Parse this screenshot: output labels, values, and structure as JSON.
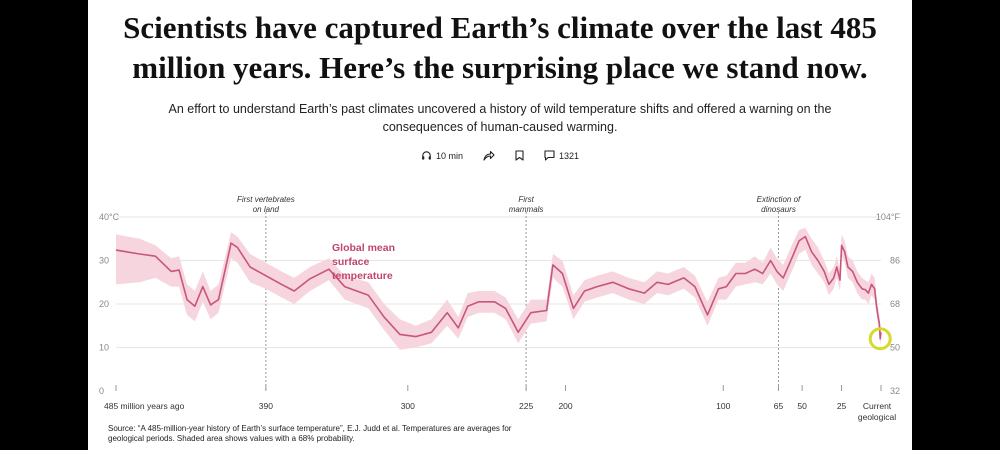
{
  "article": {
    "headline": "Scientists have captured Earth’s climate over the last 485 million years. Here’s the surprising place we stand now.",
    "dek": "An effort to understand Earth’s past climates uncovered a history of wild temperature shifts and offered a warning on the consequences of human-caused warming.",
    "toolbar": {
      "listen_label": "10 min",
      "share_icon": "share-icon",
      "bookmark_icon": "bookmark-icon",
      "comments_count": "1321"
    },
    "source": "Source: “A 485-million-year history of Earth’s surface temperature”, E.J. Judd et al. Temperatures are averages for geological periods. Shaded area shows values with a 68% probability."
  },
  "colors": {
    "line": "#c8557a",
    "band": "#f6d5df",
    "label": "#c0466c",
    "highlight": "#d6d92e"
  },
  "chart_data": {
    "type": "area",
    "series_label_lines": [
      "Global mean",
      "surface",
      "temperature"
    ],
    "xlim": [
      485,
      0
    ],
    "ylim": [
      0,
      40
    ],
    "x_ticks": [
      {
        "v": 485,
        "label": "485 million years ago"
      },
      {
        "v": 390,
        "label": "390"
      },
      {
        "v": 300,
        "label": "300"
      },
      {
        "v": 225,
        "label": "225"
      },
      {
        "v": 200,
        "label": "200"
      },
      {
        "v": 100,
        "label": "100"
      },
      {
        "v": 65,
        "label": "65"
      },
      {
        "v": 50,
        "label": "50"
      },
      {
        "v": 25,
        "label": "25"
      },
      {
        "v": 0,
        "label": "Current geological stage"
      }
    ],
    "y_ticks_left": [
      {
        "v": 0,
        "label": "0"
      },
      {
        "v": 10,
        "label": "10"
      },
      {
        "v": 20,
        "label": "20"
      },
      {
        "v": 30,
        "label": "30"
      },
      {
        "v": 40,
        "label": "40°C"
      }
    ],
    "y_ticks_right": [
      {
        "v": 0,
        "label": "32"
      },
      {
        "v": 10,
        "label": "50"
      },
      {
        "v": 20,
        "label": "68"
      },
      {
        "v": 30,
        "label": "86"
      },
      {
        "v": 40,
        "label": "104°F"
      }
    ],
    "annotations": [
      {
        "x": 390,
        "lines": [
          "First vertebrates",
          "on land"
        ]
      },
      {
        "x": 225,
        "lines": [
          "First",
          "mammals"
        ]
      },
      {
        "x": 65,
        "lines": [
          "Extinction of",
          "dinosaurs"
        ]
      }
    ],
    "grid": true,
    "points": [
      {
        "x": 485,
        "y": 32.4,
        "lo": 24.5,
        "hi": 36.0
      },
      {
        "x": 470,
        "y": 31.5,
        "lo": 25.0,
        "hi": 35.0
      },
      {
        "x": 460,
        "y": 31.0,
        "lo": 26.0,
        "hi": 33.5
      },
      {
        "x": 450,
        "y": 27.5,
        "lo": 24.0,
        "hi": 30.5
      },
      {
        "x": 445,
        "y": 27.8,
        "lo": 24.0,
        "hi": 31.0
      },
      {
        "x": 440,
        "y": 21.0,
        "lo": 17.5,
        "hi": 24.5
      },
      {
        "x": 435,
        "y": 19.5,
        "lo": 16.0,
        "hi": 23.0
      },
      {
        "x": 430,
        "y": 24.0,
        "lo": 20.5,
        "hi": 27.5
      },
      {
        "x": 425,
        "y": 19.8,
        "lo": 16.5,
        "hi": 23.0
      },
      {
        "x": 420,
        "y": 21.0,
        "lo": 18.0,
        "hi": 24.5
      },
      {
        "x": 412,
        "y": 34.0,
        "lo": 30.5,
        "hi": 36.5
      },
      {
        "x": 408,
        "y": 33.0,
        "lo": 29.5,
        "hi": 35.5
      },
      {
        "x": 400,
        "y": 28.5,
        "lo": 25.0,
        "hi": 31.5
      },
      {
        "x": 390,
        "y": 26.5,
        "lo": 23.5,
        "hi": 29.5
      },
      {
        "x": 380,
        "y": 24.5,
        "lo": 21.5,
        "hi": 27.5
      },
      {
        "x": 372,
        "y": 23.0,
        "lo": 20.0,
        "hi": 26.0
      },
      {
        "x": 362,
        "y": 25.8,
        "lo": 23.0,
        "hi": 28.5
      },
      {
        "x": 350,
        "y": 28.0,
        "lo": 25.5,
        "hi": 30.5
      },
      {
        "x": 340,
        "y": 24.0,
        "lo": 21.0,
        "hi": 26.5
      },
      {
        "x": 325,
        "y": 22.0,
        "lo": 19.0,
        "hi": 25.0
      },
      {
        "x": 315,
        "y": 17.0,
        "lo": 14.0,
        "hi": 20.0
      },
      {
        "x": 305,
        "y": 13.0,
        "lo": 9.5,
        "hi": 16.5
      },
      {
        "x": 295,
        "y": 12.5,
        "lo": 10.0,
        "hi": 15.0
      },
      {
        "x": 285,
        "y": 13.5,
        "lo": 11.0,
        "hi": 16.5
      },
      {
        "x": 275,
        "y": 18.0,
        "lo": 15.0,
        "hi": 21.0
      },
      {
        "x": 268,
        "y": 14.5,
        "lo": 12.0,
        "hi": 17.0
      },
      {
        "x": 262,
        "y": 19.5,
        "lo": 17.0,
        "hi": 22.5
      },
      {
        "x": 255,
        "y": 20.5,
        "lo": 18.0,
        "hi": 23.0
      },
      {
        "x": 245,
        "y": 20.5,
        "lo": 18.0,
        "hi": 23.0
      },
      {
        "x": 238,
        "y": 19.0,
        "lo": 16.5,
        "hi": 21.5
      },
      {
        "x": 230,
        "y": 13.5,
        "lo": 11.0,
        "hi": 16.5
      },
      {
        "x": 222,
        "y": 18.0,
        "lo": 15.5,
        "hi": 21.0
      },
      {
        "x": 212,
        "y": 18.5,
        "lo": 16.0,
        "hi": 21.0
      },
      {
        "x": 208,
        "y": 29.0,
        "lo": 26.0,
        "hi": 31.5
      },
      {
        "x": 202,
        "y": 27.0,
        "lo": 24.0,
        "hi": 30.0
      },
      {
        "x": 195,
        "y": 19.0,
        "lo": 16.5,
        "hi": 22.0
      },
      {
        "x": 188,
        "y": 23.0,
        "lo": 20.5,
        "hi": 25.5
      },
      {
        "x": 180,
        "y": 24.0,
        "lo": 21.5,
        "hi": 26.5
      },
      {
        "x": 170,
        "y": 25.0,
        "lo": 22.5,
        "hi": 27.5
      },
      {
        "x": 160,
        "y": 23.5,
        "lo": 21.0,
        "hi": 26.0
      },
      {
        "x": 150,
        "y": 22.5,
        "lo": 20.0,
        "hi": 25.0
      },
      {
        "x": 142,
        "y": 25.0,
        "lo": 22.5,
        "hi": 27.5
      },
      {
        "x": 135,
        "y": 24.5,
        "lo": 22.0,
        "hi": 27.0
      },
      {
        "x": 125,
        "y": 26.0,
        "lo": 23.5,
        "hi": 28.5
      },
      {
        "x": 118,
        "y": 24.0,
        "lo": 21.5,
        "hi": 26.5
      },
      {
        "x": 110,
        "y": 17.5,
        "lo": 15.0,
        "hi": 20.5
      },
      {
        "x": 103,
        "y": 23.5,
        "lo": 21.0,
        "hi": 26.0
      },
      {
        "x": 98,
        "y": 24.0,
        "lo": 21.0,
        "hi": 26.5
      },
      {
        "x": 92,
        "y": 27.0,
        "lo": 24.0,
        "hi": 29.5
      },
      {
        "x": 86,
        "y": 27.0,
        "lo": 24.5,
        "hi": 29.5
      },
      {
        "x": 80,
        "y": 28.0,
        "lo": 25.0,
        "hi": 31.0
      },
      {
        "x": 75,
        "y": 27.0,
        "lo": 24.5,
        "hi": 29.5
      },
      {
        "x": 70,
        "y": 30.0,
        "lo": 27.0,
        "hi": 33.0
      },
      {
        "x": 66,
        "y": 27.5,
        "lo": 24.5,
        "hi": 30.5
      },
      {
        "x": 62,
        "y": 26.0,
        "lo": 23.0,
        "hi": 29.0
      },
      {
        "x": 56,
        "y": 31.0,
        "lo": 28.0,
        "hi": 34.0
      },
      {
        "x": 52,
        "y": 34.5,
        "lo": 31.5,
        "hi": 37.0
      },
      {
        "x": 48,
        "y": 35.5,
        "lo": 32.5,
        "hi": 37.5
      },
      {
        "x": 44,
        "y": 32.0,
        "lo": 29.0,
        "hi": 35.0
      },
      {
        "x": 40,
        "y": 30.0,
        "lo": 27.0,
        "hi": 33.0
      },
      {
        "x": 36,
        "y": 27.5,
        "lo": 25.0,
        "hi": 30.0
      },
      {
        "x": 33,
        "y": 24.5,
        "lo": 22.0,
        "hi": 27.0
      },
      {
        "x": 30,
        "y": 26.0,
        "lo": 23.5,
        "hi": 28.5
      },
      {
        "x": 28,
        "y": 28.5,
        "lo": 26.0,
        "hi": 31.0
      },
      {
        "x": 26,
        "y": 25.5,
        "lo": 23.0,
        "hi": 28.0
      },
      {
        "x": 25,
        "y": 33.5,
        "lo": 31.0,
        "hi": 36.0
      },
      {
        "x": 23,
        "y": 32.0,
        "lo": 29.5,
        "hi": 34.5
      },
      {
        "x": 21,
        "y": 28.5,
        "lo": 26.0,
        "hi": 31.0
      },
      {
        "x": 18,
        "y": 27.5,
        "lo": 25.0,
        "hi": 30.0
      },
      {
        "x": 15,
        "y": 25.0,
        "lo": 22.5,
        "hi": 27.5
      },
      {
        "x": 12,
        "y": 23.5,
        "lo": 21.0,
        "hi": 26.0
      },
      {
        "x": 10,
        "y": 23.3,
        "lo": 21.0,
        "hi": 25.5
      },
      {
        "x": 8,
        "y": 22.5,
        "lo": 20.0,
        "hi": 25.0
      },
      {
        "x": 6,
        "y": 24.5,
        "lo": 22.0,
        "hi": 27.0
      },
      {
        "x": 4,
        "y": 23.5,
        "lo": 21.0,
        "hi": 26.0
      },
      {
        "x": 3,
        "y": 20.0,
        "lo": 18.0,
        "hi": 22.0
      },
      {
        "x": 2,
        "y": 17.5,
        "lo": 15.5,
        "hi": 19.5
      },
      {
        "x": 1,
        "y": 15.5,
        "lo": 13.5,
        "hi": 17.5
      },
      {
        "x": 0.5,
        "y": 12.0,
        "lo": 10.5,
        "hi": 14.0
      },
      {
        "x": 0,
        "y": 13.5,
        "lo": 12.0,
        "hi": 15.0
      }
    ],
    "highlight_point": {
      "x": 0.5,
      "y": 12.0
    }
  }
}
